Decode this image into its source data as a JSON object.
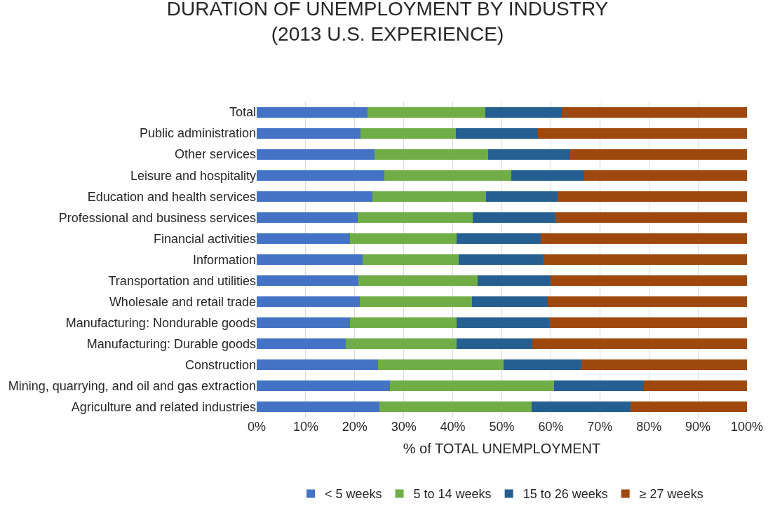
{
  "chart_data": {
    "type": "bar",
    "orientation": "horizontal",
    "stacked": true,
    "title": "DURATION OF UNEMPLOYMENT BY INDUSTRY\n(2013 U.S. EXPERIENCE)",
    "xlabel": "% of TOTAL UNEMPLOYMENT",
    "categories": [
      "Total",
      "Public administration",
      "Other services",
      "Leisure and hospitality",
      "Education and health services",
      "Professional and business services",
      "Financial activities",
      "Information",
      "Transportation and utilities",
      "Wholesale and retail trade",
      "Manufacturing: Nondurable goods",
      "Manufacturing: Durable goods",
      "Construction",
      "Mining, quarrying, and oil and gas extraction",
      "Agriculture and related industries"
    ],
    "series": [
      {
        "name": "< 5 weeks",
        "color": "#4472c4",
        "values": [
          22.6,
          21.2,
          24.0,
          26.0,
          23.6,
          20.6,
          19.0,
          21.6,
          20.8,
          21.0,
          19.0,
          18.2,
          24.8,
          27.2,
          25.0
        ]
      },
      {
        "name": "5 to 14 weeks",
        "color": "#70ad47",
        "values": [
          24.0,
          19.4,
          23.2,
          26.0,
          23.2,
          23.5,
          21.8,
          19.6,
          24.2,
          22.9,
          21.8,
          22.6,
          25.5,
          33.5,
          31.1
        ]
      },
      {
        "name": "15 to 26 weeks",
        "color": "#255e91",
        "values": [
          15.7,
          16.7,
          16.7,
          14.8,
          14.6,
          16.7,
          17.1,
          17.1,
          15.0,
          15.5,
          18.8,
          15.4,
          15.8,
          18.2,
          20.2
        ]
      },
      {
        "name": "≥ 27 weeks",
        "color": "#9e480e",
        "values": [
          37.7,
          42.7,
          36.1,
          33.2,
          38.6,
          39.2,
          42.1,
          41.7,
          40.0,
          40.6,
          40.4,
          43.8,
          33.9,
          21.1,
          23.7
        ]
      }
    ],
    "xlim": [
      0,
      100
    ],
    "xticks": [
      {
        "value": 0,
        "label": "0%"
      },
      {
        "value": 10,
        "label": "10%"
      },
      {
        "value": 20,
        "label": "20%"
      },
      {
        "value": 30,
        "label": "30%"
      },
      {
        "value": 40,
        "label": "40%"
      },
      {
        "value": 50,
        "label": "50%"
      },
      {
        "value": 60,
        "label": "60%"
      },
      {
        "value": 70,
        "label": "70%"
      },
      {
        "value": 80,
        "label": "80%"
      },
      {
        "value": 90,
        "label": "90%"
      },
      {
        "value": 100,
        "label": "100%"
      }
    ],
    "grid": "x",
    "legend": "bottom"
  }
}
